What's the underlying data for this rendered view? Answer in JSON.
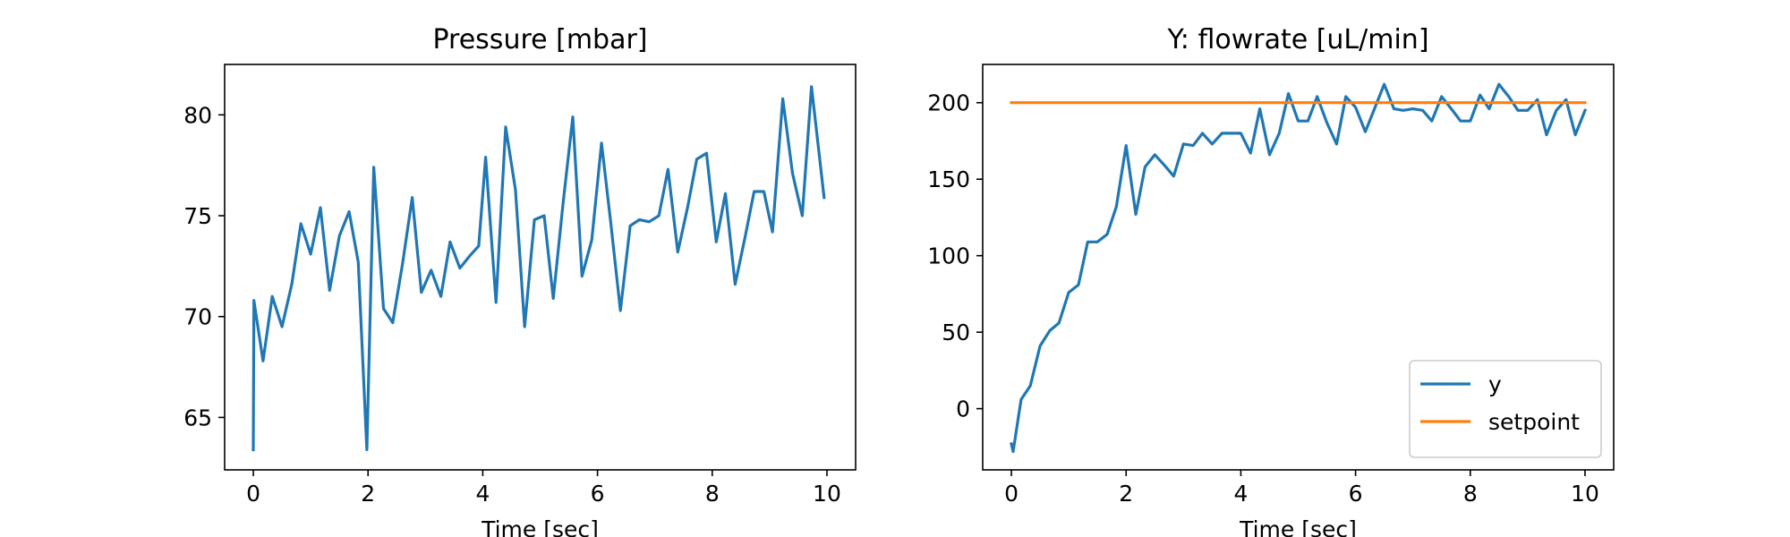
{
  "chart_data": [
    {
      "type": "line",
      "title": "Pressure [mbar]",
      "xlabel": "Time [sec]",
      "ylabel": "",
      "xlim": [
        -0.5,
        10.5
      ],
      "ylim": [
        62.4,
        82.5
      ],
      "xticks": [
        0,
        2,
        4,
        6,
        8,
        10
      ],
      "yticks": [
        65,
        70,
        75,
        80
      ],
      "grid": false,
      "series": [
        {
          "name": "",
          "color": "#1f77b4",
          "x": [
            0,
            0.01,
            0.17,
            0.33,
            0.5,
            0.67,
            0.83,
            1.0,
            1.17,
            1.33,
            1.5,
            1.67,
            1.83,
            1.98,
            2.1,
            2.27,
            2.43,
            2.6,
            2.77,
            2.93,
            3.1,
            3.27,
            3.43,
            3.6,
            3.77,
            3.93,
            4.05,
            4.23,
            4.4,
            4.57,
            4.73,
            4.9,
            5.07,
            5.23,
            5.4,
            5.57,
            5.73,
            5.9,
            6.07,
            6.23,
            6.4,
            6.57,
            6.73,
            6.9,
            7.07,
            7.23,
            7.4,
            7.57,
            7.73,
            7.9,
            8.07,
            8.23,
            8.4,
            8.57,
            8.73,
            8.9,
            9.05,
            9.23,
            9.4,
            9.57,
            9.73,
            9.95
          ],
          "values": [
            63.4,
            70.8,
            67.8,
            71.0,
            69.5,
            71.6,
            74.6,
            73.1,
            75.4,
            71.3,
            74.0,
            75.2,
            72.7,
            63.4,
            77.4,
            70.4,
            69.7,
            72.6,
            75.9,
            71.2,
            72.3,
            71.0,
            73.7,
            72.4,
            73.0,
            73.5,
            77.9,
            70.7,
            79.4,
            76.3,
            69.5,
            74.8,
            75.0,
            70.9,
            75.6,
            79.9,
            72.0,
            73.8,
            78.6,
            74.7,
            70.3,
            74.5,
            74.8,
            74.7,
            75.0,
            77.3,
            73.2,
            75.4,
            77.8,
            78.1,
            73.7,
            76.1,
            71.6,
            73.9,
            76.2,
            76.2,
            74.2,
            80.8,
            77.1,
            75.0,
            81.4,
            75.9
          ]
        }
      ]
    },
    {
      "type": "line",
      "title": "Y: flowrate [uL/min]",
      "xlabel": "Time [sec]",
      "ylabel": "",
      "xlim": [
        -0.5,
        10.5
      ],
      "ylim": [
        -40,
        225
      ],
      "xticks": [
        0,
        2,
        4,
        6,
        8,
        10
      ],
      "yticks": [
        0,
        50,
        100,
        150,
        200
      ],
      "grid": false,
      "legend": "lower-right",
      "series": [
        {
          "name": "y",
          "color": "#1f77b4",
          "x": [
            0,
            0.03,
            0.17,
            0.33,
            0.5,
            0.67,
            0.83,
            1.0,
            1.17,
            1.33,
            1.5,
            1.67,
            1.83,
            2.0,
            2.17,
            2.33,
            2.5,
            2.67,
            2.83,
            3.0,
            3.17,
            3.33,
            3.5,
            3.67,
            3.83,
            4.0,
            4.17,
            4.33,
            4.5,
            4.67,
            4.83,
            5.0,
            5.17,
            5.33,
            5.5,
            5.67,
            5.83,
            6.0,
            6.17,
            6.33,
            6.5,
            6.67,
            6.83,
            7.0,
            7.17,
            7.33,
            7.5,
            7.67,
            7.83,
            8.0,
            8.17,
            8.33,
            8.5,
            8.67,
            8.83,
            9.0,
            9.17,
            9.33,
            9.5,
            9.67,
            9.83,
            10.0
          ],
          "values": [
            -23,
            -28,
            6,
            15,
            41,
            51,
            56,
            76,
            81,
            109,
            109,
            114,
            132,
            172,
            127,
            158,
            166,
            159,
            152,
            173,
            172,
            180,
            173,
            180,
            180,
            180,
            167,
            196,
            166,
            180,
            206,
            188,
            188,
            204,
            187,
            173,
            204,
            197,
            181,
            196,
            212,
            196,
            195,
            196,
            195,
            188,
            204,
            196,
            188,
            188,
            205,
            196,
            212,
            204,
            195,
            195,
            202,
            179,
            195,
            202,
            179,
            195
          ]
        },
        {
          "name": "setpoint",
          "color": "#ff7f0e",
          "x": [
            0,
            10
          ],
          "values": [
            200,
            200
          ]
        }
      ]
    }
  ]
}
